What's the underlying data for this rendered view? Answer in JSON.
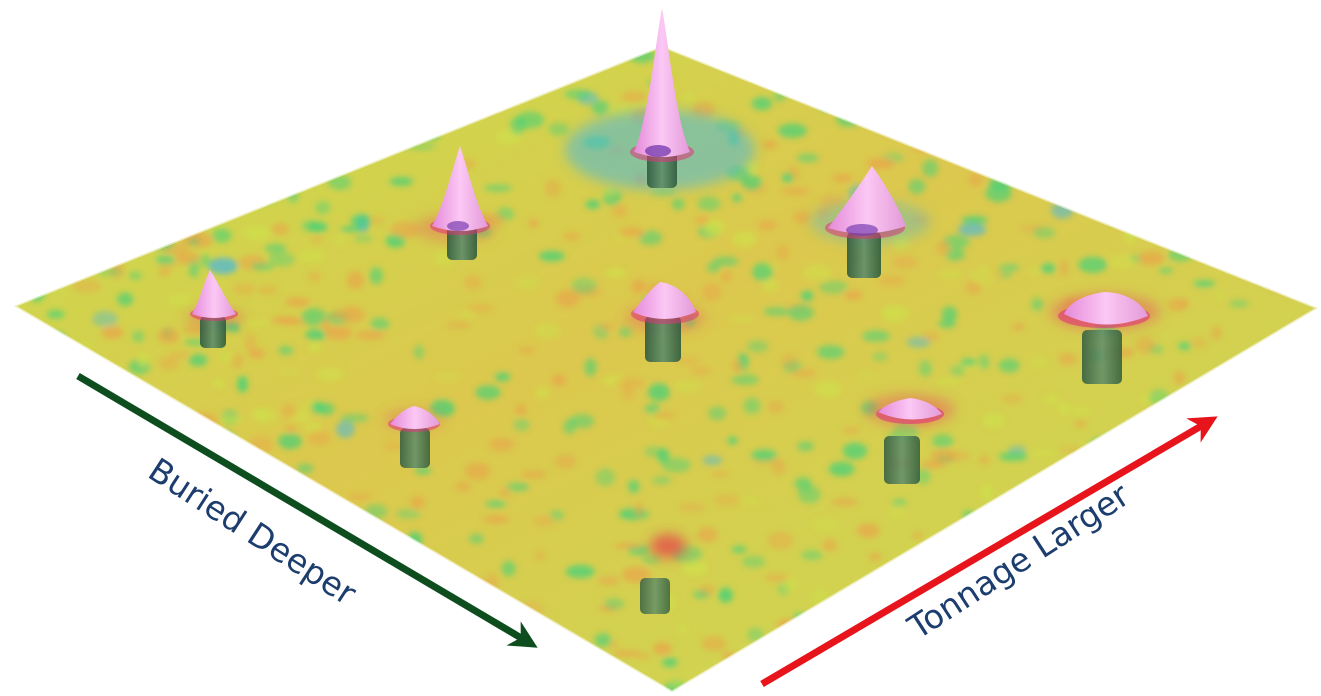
{
  "axes": {
    "depth": {
      "label": "Buried Deeper",
      "color": "#0d4d1e"
    },
    "tonnage": {
      "label": "Tonnage Larger",
      "color": "#e8141c"
    }
  },
  "label_color": "#1c3d6e",
  "surface_colors": {
    "base": "#cfe04a",
    "warm": "#e8a64a",
    "cool": "#3fd07a",
    "deep": "#4bb8d8"
  },
  "anomaly_colors": {
    "peak": "#f2a6ec",
    "rim": "#e0357a",
    "object": "#3f6e4e"
  },
  "objects": [
    {
      "name": "object-small-shallow",
      "depth_rank": 1,
      "tonnage_rank": 1
    },
    {
      "name": "object-small-medium",
      "depth_rank": 2,
      "tonnage_rank": 1
    },
    {
      "name": "object-small-deep",
      "depth_rank": 3,
      "tonnage_rank": 1
    },
    {
      "name": "object-medium-shallow",
      "depth_rank": 1,
      "tonnage_rank": 2
    },
    {
      "name": "object-medium-medium",
      "depth_rank": 2,
      "tonnage_rank": 2
    },
    {
      "name": "object-medium-deep",
      "depth_rank": 3,
      "tonnage_rank": 2
    },
    {
      "name": "object-large-shallow",
      "depth_rank": 1,
      "tonnage_rank": 3
    },
    {
      "name": "object-large-medium",
      "depth_rank": 2,
      "tonnage_rank": 3
    },
    {
      "name": "object-large-deep",
      "depth_rank": 3,
      "tonnage_rank": 3
    }
  ]
}
